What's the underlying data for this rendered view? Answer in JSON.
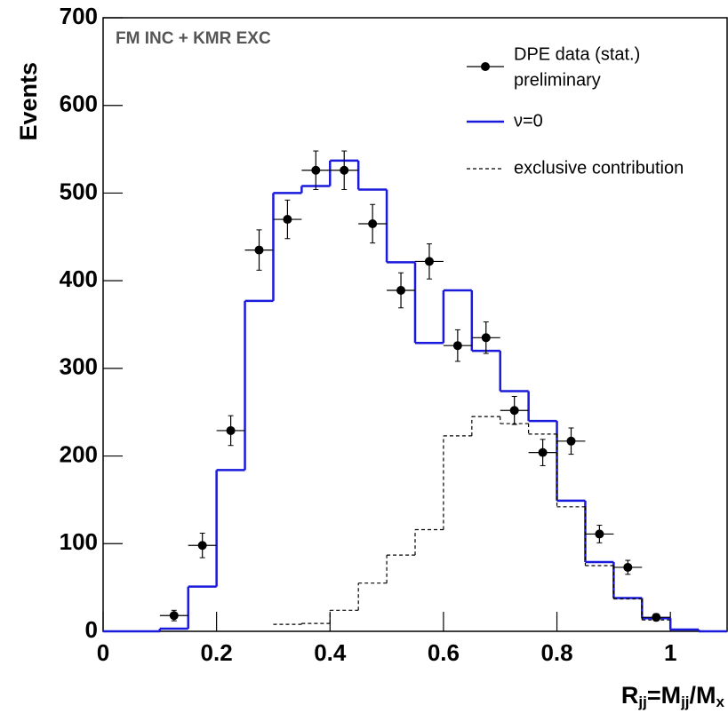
{
  "chart_data": {
    "type": "histogram",
    "annotation": "FM INC + KMR EXC",
    "xlabel": [
      "R",
      "jj",
      "=M",
      "jj",
      "/M",
      "x"
    ],
    "ylabel": "Events",
    "xlim": [
      0,
      1.1
    ],
    "ylim": [
      0,
      700
    ],
    "xticks": [
      0,
      0.2,
      0.4,
      0.6,
      0.8,
      1
    ],
    "yticks": [
      0,
      100,
      200,
      300,
      400,
      500,
      600,
      700
    ],
    "bins": [
      0,
      0.05,
      0.1,
      0.15,
      0.2,
      0.25,
      0.3,
      0.35,
      0.4,
      0.45,
      0.5,
      0.55,
      0.6,
      0.65,
      0.7,
      0.75,
      0.8,
      0.85,
      0.9,
      0.95,
      1,
      1.05,
      1.1
    ],
    "series": [
      {
        "name": "ν=0",
        "color": "#1a1adc",
        "dash": false,
        "values": [
          0,
          0,
          3,
          51,
          184,
          377,
          500,
          508,
          537,
          504,
          421,
          329,
          389,
          320,
          274,
          240,
          149,
          79,
          38,
          15,
          2,
          0
        ]
      },
      {
        "name": "exclusive contribution",
        "color": "#000000",
        "dash": true,
        "values": [
          null,
          null,
          null,
          null,
          null,
          null,
          8,
          9,
          24,
          55,
          87,
          116,
          223,
          245,
          237,
          225,
          142,
          75,
          37,
          13,
          null,
          null
        ]
      }
    ],
    "points": {
      "name": "DPE data (stat.)",
      "note": "preliminary",
      "color": "#000000",
      "x": [
        0.125,
        0.175,
        0.225,
        0.275,
        0.325,
        0.375,
        0.425,
        0.475,
        0.525,
        0.575,
        0.625,
        0.675,
        0.725,
        0.775,
        0.825,
        0.875,
        0.925,
        0.975
      ],
      "values": [
        18,
        98,
        229,
        435,
        470,
        526,
        526,
        465,
        389,
        422,
        326,
        335,
        252,
        204,
        217,
        111,
        73,
        16
      ],
      "yerr": [
        6,
        14,
        17,
        23,
        22,
        22,
        22,
        22,
        20,
        20,
        18,
        18,
        16,
        15,
        15,
        10,
        8,
        4
      ],
      "xerr": 0.025
    }
  }
}
